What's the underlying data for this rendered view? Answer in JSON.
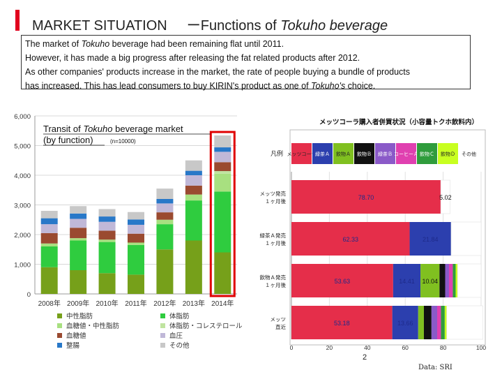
{
  "slide": {
    "title": "MARKET SITUATION",
    "subtitle_prefix": "ーFunctions of ",
    "subtitle_italic": "Tokuho beverage",
    "page_number": "2",
    "source": "Data: SRI"
  },
  "summary": {
    "line1_a": "The market of ",
    "line1_i": "Tokuho",
    "line1_b": " beverage had been remaining flat until 2011.",
    "line2": "However, it has made a big progress after releasing the fat related products after 2012.",
    "line3": "As other companies' products increase in the market, the rate of people buying a bundle of products",
    "line4_a": "has increased. This has lead consumers to buy KIRIN's product as one of ",
    "line4_i": "Tokuho's",
    "line4_b": " choice."
  },
  "chart_data": [
    {
      "type": "stacked-bar",
      "title_a": "Transit of ",
      "title_i": "Tokuho",
      "title_b": " beverage market",
      "title_line2": "(by function)",
      "note": "(n=10000)",
      "categories": [
        "2008年",
        "2009年",
        "2010年",
        "2011年",
        "2012年",
        "2013年",
        "2014年"
      ],
      "ylim": [
        0,
        6000
      ],
      "yticks": [
        "0",
        "1,000",
        "2,000",
        "3,000",
        "4,000",
        "5,000",
        "6,000"
      ],
      "highlight_category": "2014年",
      "series": [
        {
          "name": "中性脂肪",
          "color": "#76a01a",
          "values": [
            900,
            800,
            700,
            650,
            1500,
            1800,
            1400
          ]
        },
        {
          "name": "体脂肪",
          "color": "#2fcc3f",
          "values": [
            700,
            1000,
            1050,
            1000,
            850,
            1350,
            2050
          ]
        },
        {
          "name": "血糖値・中性脂肪",
          "color": "#a8e080",
          "values": [
            100,
            80,
            80,
            80,
            150,
            200,
            600
          ]
        },
        {
          "name": "体脂肪・コレステロール",
          "color": "#c0e4a0",
          "values": [
            0,
            0,
            0,
            0,
            0,
            0,
            90
          ]
        },
        {
          "name": "血糖値",
          "color": "#9a4a30",
          "values": [
            350,
            350,
            300,
            300,
            250,
            300,
            300
          ]
        },
        {
          "name": "血圧",
          "color": "#c0b8d8",
          "values": [
            300,
            300,
            300,
            300,
            300,
            350,
            350
          ]
        },
        {
          "name": "整腸",
          "color": "#2878c8",
          "values": [
            200,
            180,
            180,
            180,
            150,
            150,
            150
          ]
        },
        {
          "name": "その他",
          "color": "#c8c8c8",
          "values": [
            250,
            250,
            250,
            250,
            350,
            350,
            400
          ]
        }
      ]
    },
    {
      "type": "stacked-bar-horizontal",
      "title": "メッツコーラ購入者併買状況（小容量トクホ飲料内）",
      "legend_title": "凡例",
      "xlim": [
        0,
        100
      ],
      "xticks": [
        "0",
        "20",
        "40",
        "60",
        "80",
        "100"
      ],
      "legend": [
        {
          "name": "メッツコーラ",
          "color": "#e52e4a",
          "text_color": "#222222"
        },
        {
          "name": "緑茶Ａ",
          "color": "#2c3fae",
          "text_color": "#ffffff"
        },
        {
          "name": "飲物Ａ",
          "color": "#80c020",
          "text_color": "#222222"
        },
        {
          "name": "飲物Ｂ",
          "color": "#111111",
          "text_color": "#ffffff"
        },
        {
          "name": "緑茶Ｂ",
          "color": "#8a5ac8",
          "text_color": "#ffffff"
        },
        {
          "name": "コーヒーＡ",
          "color": "#e040b0",
          "text_color": "#ffffff"
        },
        {
          "name": "飲物Ｃ",
          "color": "#2f9c3c",
          "text_color": "#ffffff"
        },
        {
          "name": "飲物Ｄ",
          "color": "#c8ff20",
          "text_color": "#222222"
        },
        {
          "name": "その他",
          "color": "#ffffff",
          "text_color": "#222222"
        }
      ],
      "rows": [
        {
          "label": "メッツ発売１ヶ月後",
          "values": [
            78.7,
            0,
            0,
            0,
            0,
            0,
            0,
            0,
            5.02
          ],
          "labels": [
            "78.70",
            "",
            "",
            "",
            "",
            "",
            "",
            "",
            "5.02"
          ]
        },
        {
          "label": "緑茶Ａ発売１ヶ月後",
          "values": [
            62.33,
            21.84,
            0,
            0,
            0,
            0,
            0,
            0,
            15.83
          ],
          "labels": [
            "62.33",
            "21.84",
            "",
            "",
            "",
            "",
            "",
            "",
            ""
          ]
        },
        {
          "label": "飲物Ａ発売１ヶ月後",
          "values": [
            53.63,
            14.41,
            10.04,
            3,
            2,
            2,
            1.5,
            1,
            12.42
          ],
          "labels": [
            "53.63",
            "14.41",
            "10.04",
            "",
            "",
            "",
            "",
            "",
            ""
          ]
        },
        {
          "label": "メッツ直近",
          "values": [
            53.18,
            13.66,
            3,
            4,
            3,
            2,
            2,
            1,
            19.16
          ],
          "labels": [
            "53.18",
            "13.66",
            "",
            "",
            "",
            "",
            "",
            "",
            ""
          ]
        }
      ]
    }
  ]
}
